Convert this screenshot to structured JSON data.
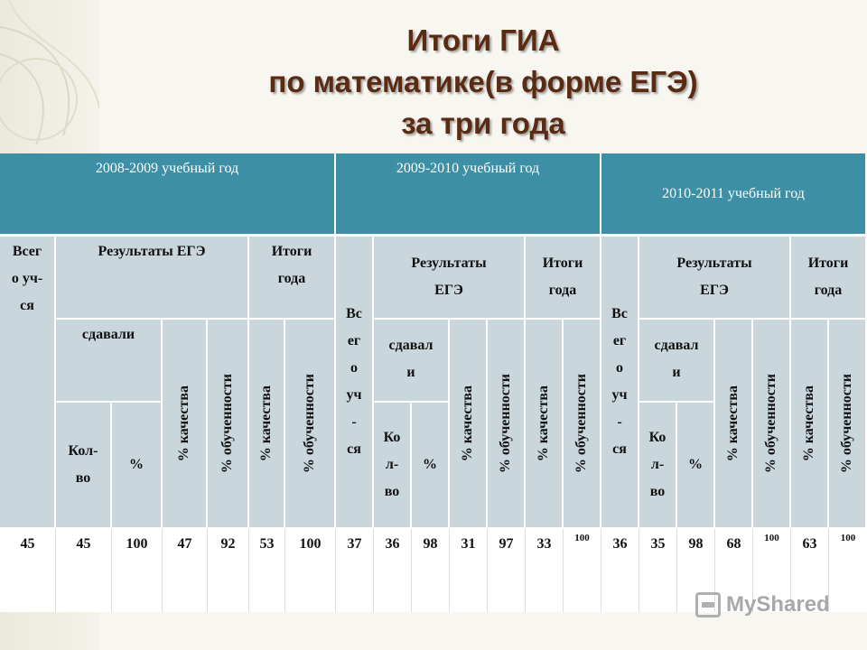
{
  "title": {
    "line1": "Итоги ГИА",
    "line2": "по математике(в форме ЕГЭ)",
    "line3": "за три года"
  },
  "years": [
    "2008-2009 учебный год",
    "2009-2010 учебный год",
    "2010-2011 учебный год"
  ],
  "headers": {
    "vsego_a": [
      "Всег",
      "о уч-",
      "ся"
    ],
    "vsego_b": [
      "Вс",
      "ег",
      "о",
      "уч",
      "-",
      "ся"
    ],
    "results_a": "Результаты ЕГЭ",
    "results_b": [
      "Результаты",
      "ЕГЭ"
    ],
    "itogi_a": [
      "Итоги",
      "года"
    ],
    "itogi_b": [
      "Итоги",
      "года"
    ],
    "sdavali_a": "сдавали",
    "sdavali_b": [
      "сдавал",
      "и"
    ],
    "kolvo_a": [
      "Кол-",
      "во"
    ],
    "kolvo_b": [
      "Ко",
      "л-",
      "во"
    ],
    "percent": "%",
    "quality": "% качества",
    "learning": "% обученности"
  },
  "values": [
    "45",
    "45",
    "100",
    "47",
    "92",
    "53",
    "100",
    "37",
    "36",
    "98",
    "31",
    "97",
    "33",
    "100",
    "36",
    "35",
    "98",
    "68",
    "100",
    "63",
    "100"
  ],
  "watermark": "MyShared"
}
